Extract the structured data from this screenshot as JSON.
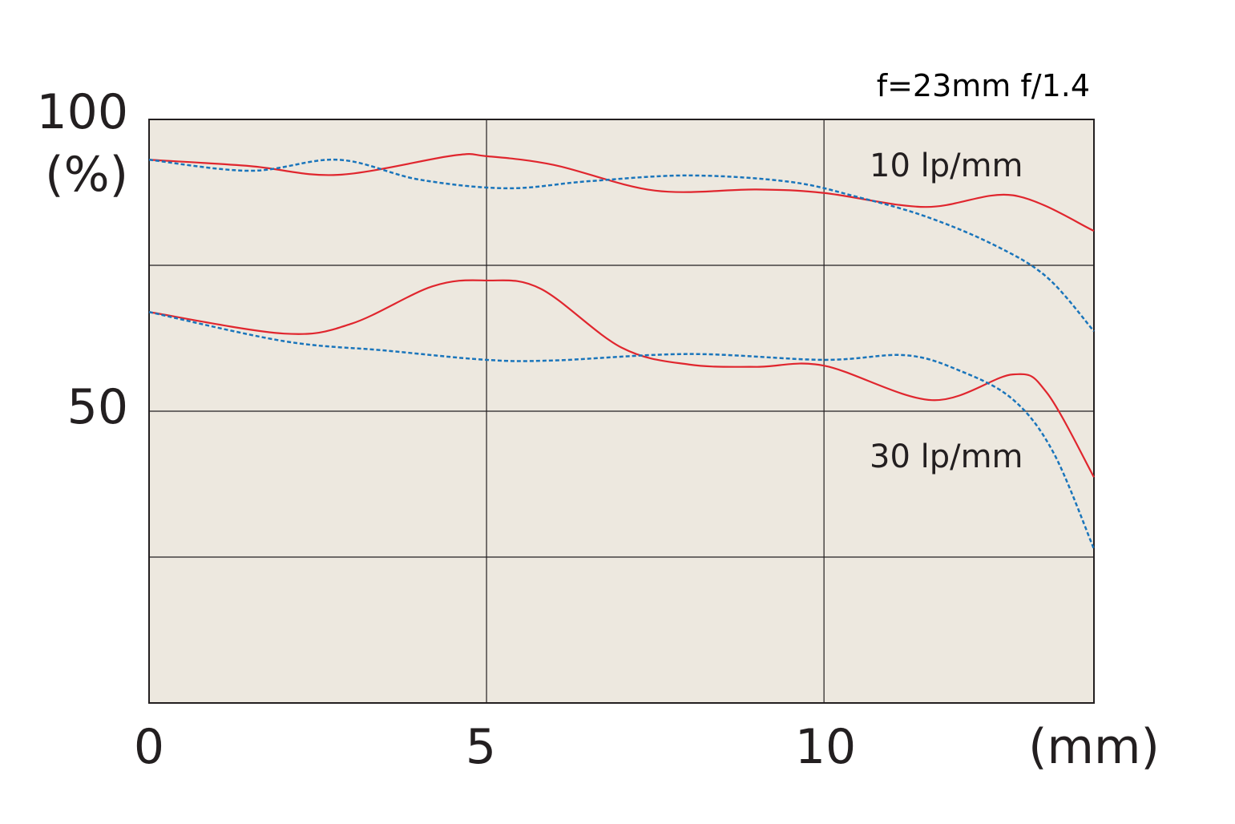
{
  "chart_data": {
    "type": "line",
    "title": "f=23mm f/1.4",
    "xlabel": "(mm)",
    "ylabel": "(%)",
    "xlim": [
      0,
      14
    ],
    "ylim": [
      0,
      100
    ],
    "x_ticks": [
      0,
      5,
      10
    ],
    "x_tick_labels": [
      "0",
      "5",
      "10"
    ],
    "y_ticks": [
      50,
      100
    ],
    "y_tick_labels": [
      "50",
      "100"
    ],
    "grid": true,
    "grid_x": [
      5,
      10
    ],
    "grid_y": [
      25,
      50,
      75
    ],
    "background_color": "#ede8df",
    "annotations": [
      {
        "text": "10 lp/mm",
        "x": 10.6,
        "y": 92
      },
      {
        "text": "30 lp/mm",
        "x": 10.6,
        "y": 42
      }
    ],
    "series": [
      {
        "group": "10 lp/mm",
        "style": "solid",
        "color": "#e0262e",
        "points": [
          [
            0,
            93.1
          ],
          [
            1.5,
            92
          ],
          [
            2.8,
            90.5
          ],
          [
            4.5,
            93.8
          ],
          [
            5,
            93.7
          ],
          [
            6,
            92.2
          ],
          [
            7.5,
            87.8
          ],
          [
            9,
            88
          ],
          [
            10,
            87.4
          ],
          [
            11.5,
            85
          ],
          [
            12.8,
            87
          ],
          [
            14,
            80.9
          ]
        ]
      },
      {
        "group": "10 lp/mm",
        "style": "dotted",
        "color": "#1a75bb",
        "points": [
          [
            0,
            93.1
          ],
          [
            1.5,
            91.2
          ],
          [
            2.8,
            93.1
          ],
          [
            4,
            89.7
          ],
          [
            5.3,
            88.2
          ],
          [
            6.5,
            89.4
          ],
          [
            8,
            90.4
          ],
          [
            9.5,
            89.3
          ],
          [
            10.5,
            86.7
          ],
          [
            11.5,
            83.4
          ],
          [
            12.5,
            78.6
          ],
          [
            13.3,
            73
          ],
          [
            14,
            63.7
          ]
        ]
      },
      {
        "group": "30 lp/mm",
        "style": "solid",
        "color": "#e0262e",
        "points": [
          [
            0,
            67
          ],
          [
            2,
            63.3
          ],
          [
            3,
            65
          ],
          [
            4.2,
            71.4
          ],
          [
            5,
            72.4
          ],
          [
            5.8,
            71
          ],
          [
            7,
            60.9
          ],
          [
            8,
            58
          ],
          [
            9,
            57.6
          ],
          [
            10,
            57.8
          ],
          [
            11.6,
            51.9
          ],
          [
            12.8,
            56.3
          ],
          [
            13.3,
            53.2
          ],
          [
            14,
            38.7
          ]
        ]
      },
      {
        "group": "30 lp/mm",
        "style": "dotted",
        "color": "#1a75bb",
        "points": [
          [
            0,
            67
          ],
          [
            2,
            62
          ],
          [
            3.5,
            60.4
          ],
          [
            5,
            58.8
          ],
          [
            6,
            58.7
          ],
          [
            8,
            59.8
          ],
          [
            10,
            58.8
          ],
          [
            11.2,
            59.6
          ],
          [
            12,
            57
          ],
          [
            12.8,
            52
          ],
          [
            13.4,
            42.9
          ],
          [
            14,
            26.4
          ]
        ]
      }
    ]
  }
}
